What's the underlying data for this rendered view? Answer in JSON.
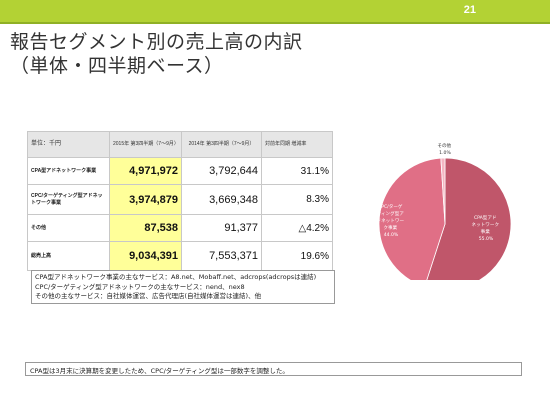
{
  "page_number": "21",
  "title": {
    "line1": "報告セグメント別の売上高の内訳",
    "line2": "（単体・四半期ベース）"
  },
  "table": {
    "headers": {
      "unit": "単位：千円",
      "col2015": "2015年 第3四半期（7～9月）",
      "col2014": "2014年 第3四半期（7～9月）",
      "yoy": "対前年同期 増減率"
    },
    "rows": [
      {
        "label": "CPA型アドネットワーク事業",
        "v2015": "4,971,972",
        "v2014": "3,792,644",
        "yoy": "31.1%"
      },
      {
        "label": "CPC/ターゲティング型アドネットワーク事業",
        "v2015": "3,974,879",
        "v2014": "3,669,348",
        "yoy": "8.3%"
      },
      {
        "label": "その他",
        "v2015": "87,538",
        "v2014": "91,377",
        "yoy": "△4.2%"
      },
      {
        "label": "総売上高",
        "v2015": "9,034,391",
        "v2014": "7,553,371",
        "yoy": "19.6%"
      }
    ]
  },
  "notes": [
    "CPA型アドネットワーク事業の主なサービス：A8.net、Mobaff.net、adcrops(adcropsは連結)",
    "CPC/ターゲティング型アドネットワークの主なサービス：nend、nex8",
    "その他の主なサービス：自社媒体運営、広告代理店(自社媒体運営は連結)、他"
  ],
  "pie": {
    "colors": {
      "cpa": "#c0566a",
      "cpc": "#e06f86",
      "other": "#f4b6c2"
    },
    "slices": [
      {
        "label": "CPA型アドネットワーク事業",
        "percent": 55.0,
        "pct_label": "55.0%"
      },
      {
        "label": "CPC/ターゲティング型アドネットワーク事業",
        "percent": 44.0,
        "pct_label": "44.0%"
      },
      {
        "label": "その他",
        "percent": 1.0,
        "pct_label": "1.0%"
      }
    ]
  },
  "footer": "CPA型は3月末に決算期を変更したため、CPC/ターゲティング型は一部数字を調整した。"
}
